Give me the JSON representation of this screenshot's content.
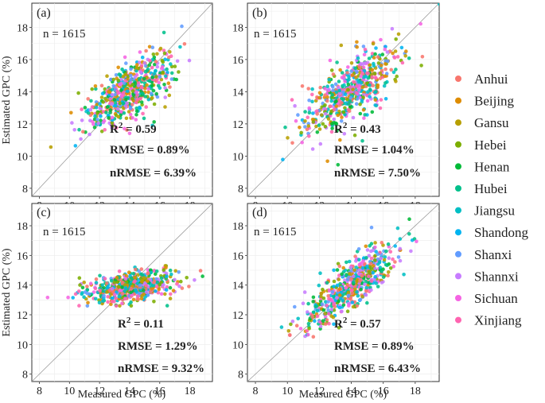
{
  "chart_data": {
    "type": "scatter",
    "xlabel": "Measured GPC (%)",
    "ylabel": "Estimated GPC (%)",
    "xlim": [
      7.5,
      19.5
    ],
    "ylim": [
      7.5,
      19.5
    ],
    "xticks": [
      8,
      10,
      12,
      14,
      16,
      18
    ],
    "yticks": [
      8,
      10,
      12,
      14,
      16,
      18
    ],
    "reference_line": "1:1",
    "legend": {
      "placement": "right",
      "entries": [
        {
          "name": "Anhui",
          "color": "#F8766D"
        },
        {
          "name": "Beijing",
          "color": "#DE8C00"
        },
        {
          "name": "Gansu",
          "color": "#B79F00"
        },
        {
          "name": "Hebei",
          "color": "#7CAE00"
        },
        {
          "name": "Henan",
          "color": "#00BA38"
        },
        {
          "name": "Hubei",
          "color": "#00C08B"
        },
        {
          "name": "Jiangsu",
          "color": "#00BFC4"
        },
        {
          "name": "Shandong",
          "color": "#00B4F0"
        },
        {
          "name": "Shanxi",
          "color": "#619CFF"
        },
        {
          "name": "Shannxi",
          "color": "#C77CFF"
        },
        {
          "name": "Sichuan",
          "color": "#F564E3"
        },
        {
          "name": "Xinjiang",
          "color": "#FF64B0"
        }
      ]
    },
    "panels": [
      {
        "label": "(a)",
        "n": "n = 1615",
        "r2_base": "R",
        "r2_sup": "2",
        "r2_val": " = 0.59",
        "rmse": "RMSE = 0.89%",
        "nrmse": "nRMSE = 6.39%",
        "r2": 0.59,
        "center": [
          14.0,
          14.0
        ],
        "spread_x": 1.45,
        "slope": 0.55,
        "resid": 0.85
      },
      {
        "label": "(b)",
        "n": "n = 1615",
        "r2_base": "R",
        "r2_sup": "2",
        "r2_val": " = 0.43",
        "rmse": "RMSE = 1.04%",
        "nrmse": "nRMSE = 7.50%",
        "r2": 0.43,
        "center": [
          14.0,
          14.0
        ],
        "spread_x": 1.45,
        "slope": 0.62,
        "resid": 1.0
      },
      {
        "label": "(c)",
        "n": "n = 1615",
        "r2_base": "R",
        "r2_sup": "2",
        "r2_val": " = 0.11",
        "rmse": "RMSE = 1.29%",
        "nrmse": "nRMSE = 9.32%",
        "r2": 0.11,
        "center": [
          14.0,
          13.9
        ],
        "spread_x": 1.45,
        "slope": 0.15,
        "resid": 0.5
      },
      {
        "label": "(d)",
        "n": "n = 1615",
        "r2_base": "R",
        "r2_sup": "2",
        "r2_val": " = 0.57",
        "rmse": "RMSE = 0.89%",
        "nrmse": "nRMSE = 6.43%",
        "r2": 0.57,
        "center": [
          14.0,
          14.0
        ],
        "spread_x": 1.45,
        "slope": 0.8,
        "resid": 0.75
      }
    ]
  }
}
